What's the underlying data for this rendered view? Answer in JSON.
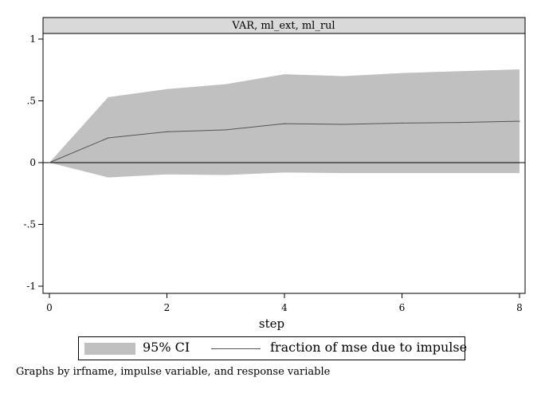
{
  "chart_data": {
    "type": "line",
    "panel_title": "VAR, ml_ext, ml_rul",
    "xlabel": "step",
    "ylabel": "",
    "xlim": [
      0,
      8
    ],
    "ylim": [
      -1,
      1
    ],
    "xticks": [
      0,
      2,
      4,
      6,
      8
    ],
    "xtick_labels": [
      "0",
      "2",
      "4",
      "6",
      "8"
    ],
    "yticks": [
      1,
      0.5,
      0,
      -0.5,
      -1
    ],
    "ytick_labels": [
      "1",
      ".5",
      "0",
      "-.5",
      "-1"
    ],
    "x": [
      0,
      1,
      2,
      3,
      4,
      5,
      6,
      7,
      8
    ],
    "series": [
      {
        "name": "fraction of mse due to impulse",
        "values": [
          0,
          0.2,
          0.25,
          0.265,
          0.315,
          0.31,
          0.32,
          0.325,
          0.335
        ]
      }
    ],
    "ci_band": {
      "name": "95% CI",
      "lower": [
        0,
        -0.12,
        -0.095,
        -0.1,
        -0.08,
        -0.085,
        -0.085,
        -0.085,
        -0.085
      ],
      "upper": [
        0,
        0.53,
        0.595,
        0.635,
        0.715,
        0.7,
        0.725,
        0.74,
        0.755
      ]
    },
    "reference_line": 0,
    "grid": false,
    "legend_placement": "bottom",
    "colors": {
      "band": "#c0c0c0",
      "line": "#555555",
      "header": "#d9d9d9"
    }
  },
  "legend": {
    "ci_label": "95% CI",
    "line_label": "fraction of mse due to impulse"
  },
  "note": "Graphs by irfname, impulse variable, and response variable"
}
